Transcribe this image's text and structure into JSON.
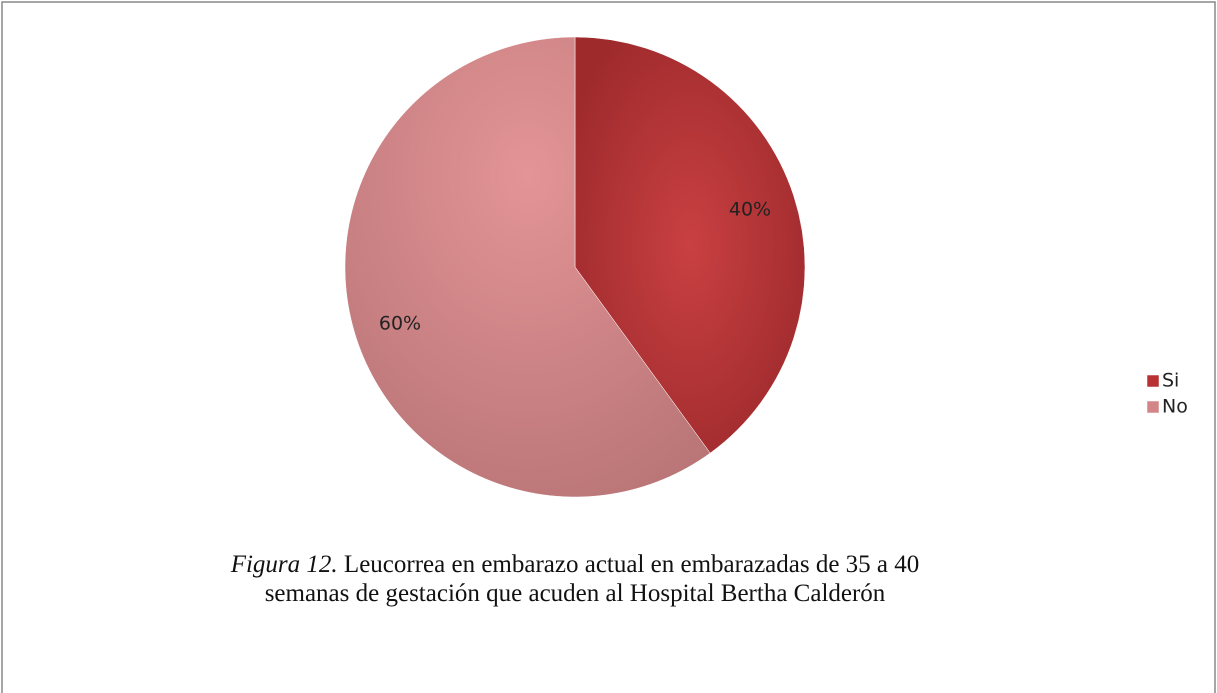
{
  "chart_data": {
    "type": "pie",
    "categories": [
      "Si",
      "No"
    ],
    "values": [
      40,
      60
    ],
    "value_labels": [
      "40%",
      "60%"
    ],
    "colors": [
      "#b83234",
      "#d38587"
    ],
    "legend": "right",
    "caption_label": "Figura 12.",
    "caption": [
      "Leucorrea en embarazo actual en embarazadas de 35 a 40",
      "semanas de gestación que acuden al Hospital Bertha Calderón"
    ]
  }
}
